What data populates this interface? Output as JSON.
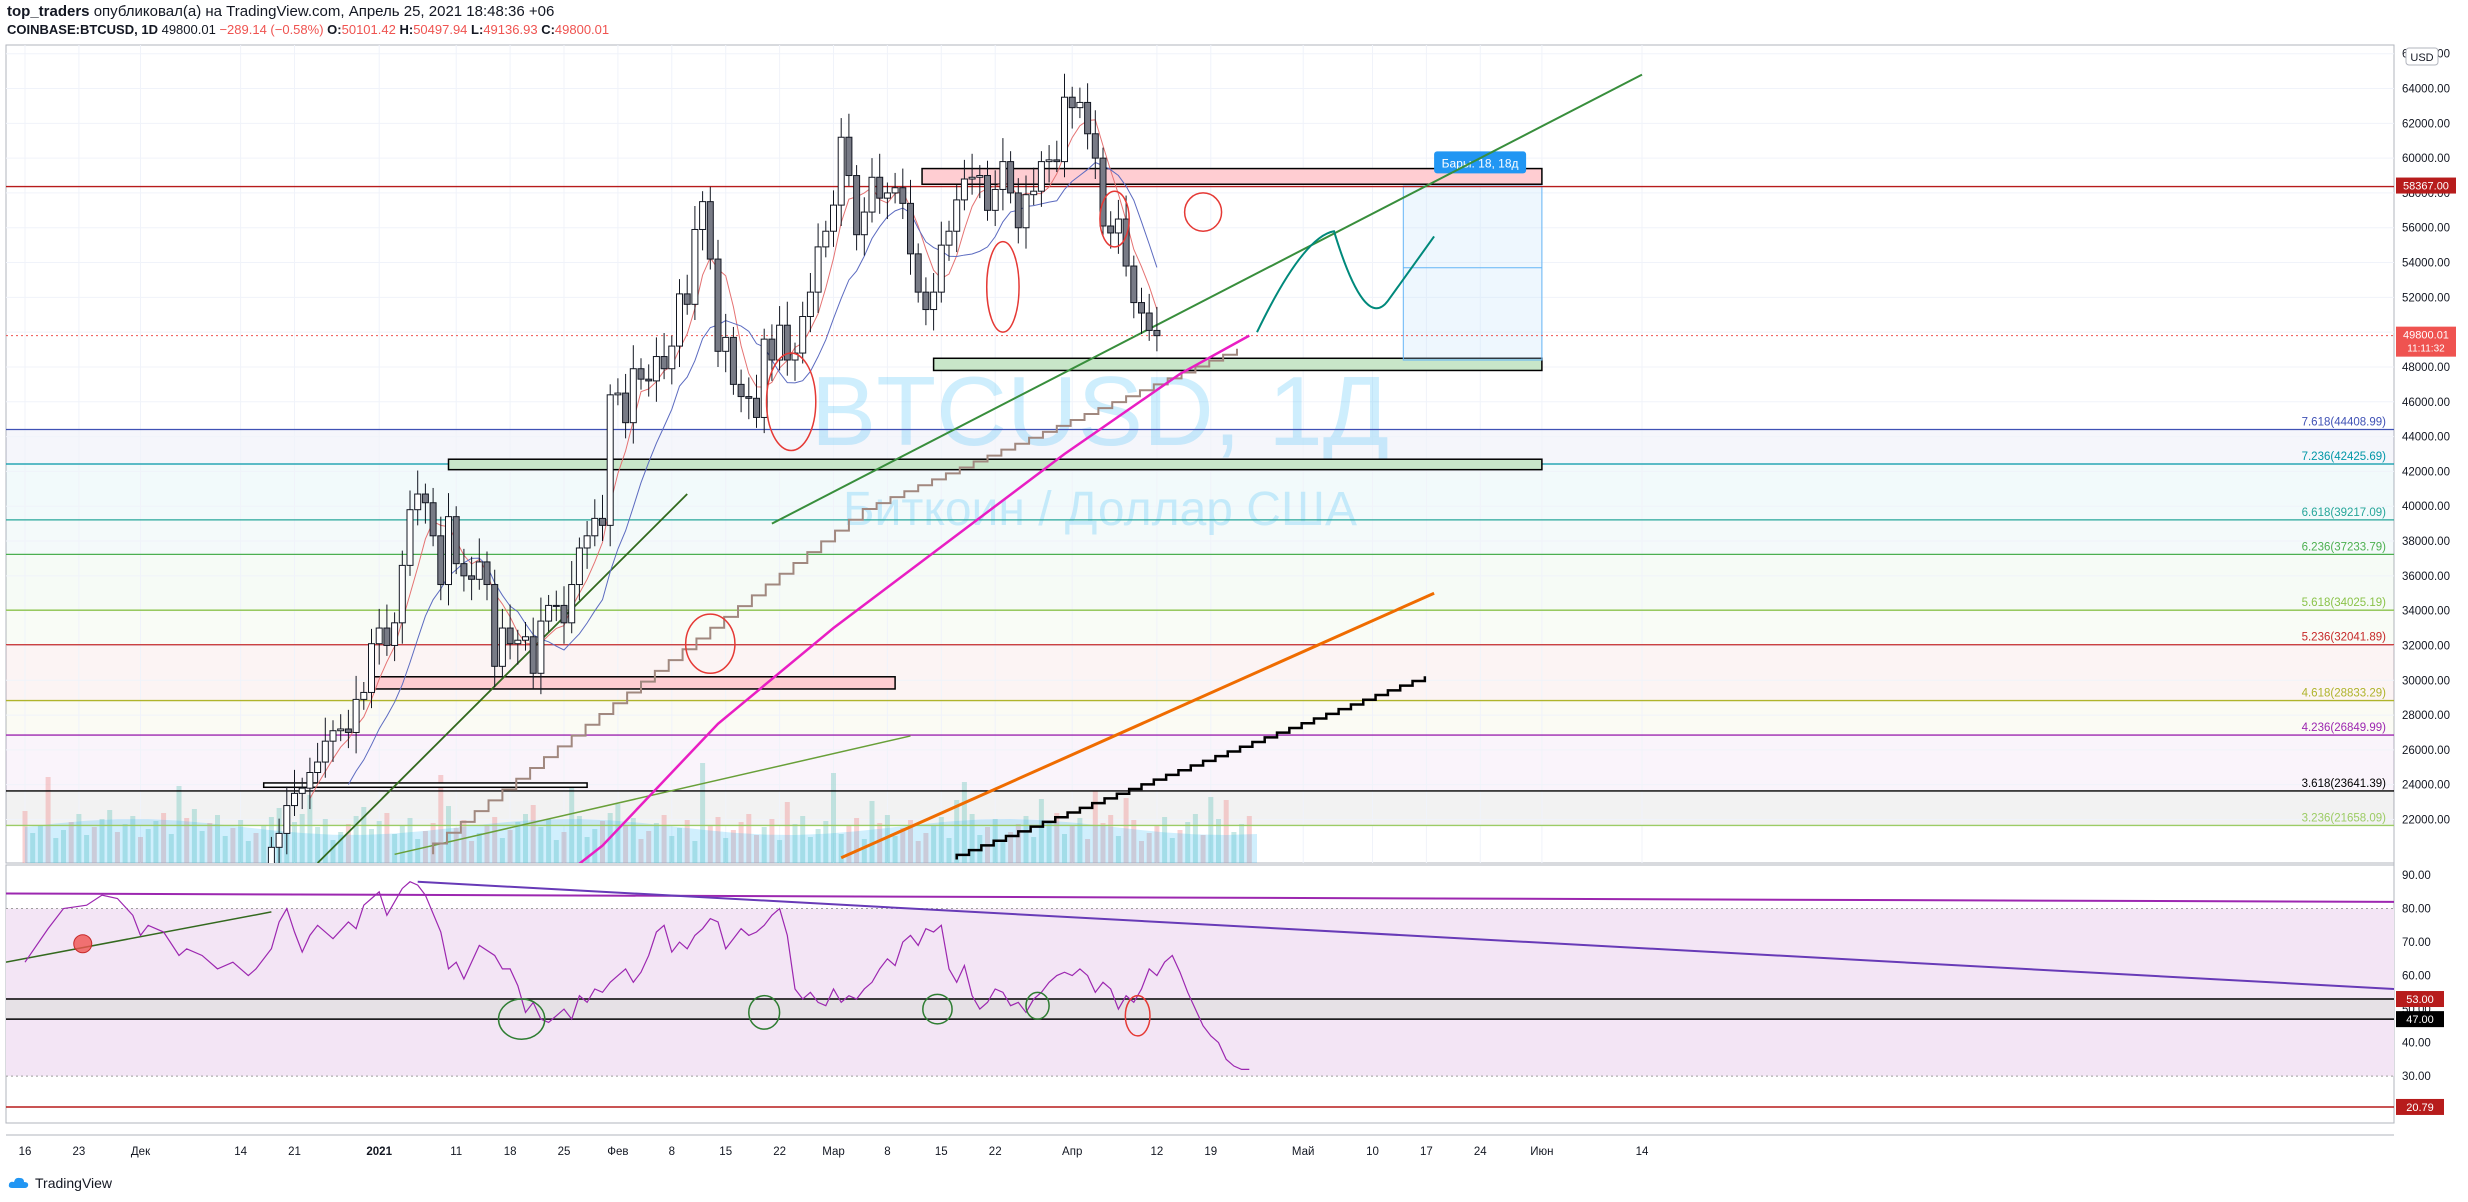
{
  "header": {
    "user": "top_traders",
    "published_text": "опубликовал(а) на TradingView.com, Апрель 25, 2021 18:48:36 +06",
    "symbol": "COINBASE:BTCUSD, 1D",
    "last": "49800.01",
    "change": "−289.14 (−0.58%)",
    "o_label": "O:",
    "o_value": "50101.42",
    "h_label": "H:",
    "h_value": "50497.94",
    "l_label": "L:",
    "l_value": "49136.93",
    "c_label": "C:",
    "c_value": "49800.01"
  },
  "watermark": {
    "symbol": "BTCUSD, 1Д",
    "description": "Биткоин / Доллар США"
  },
  "currency_badge": "USD",
  "colors": {
    "up": "#ffffff",
    "down": "#787b86",
    "ema200": "#e91ec3",
    "orange": "#ef6c00",
    "rsi": "#9c27b0",
    "price_badge": "#ef5350",
    "level_badge": "#b71c1c"
  },
  "price_badges": [
    {
      "label": "58367.00",
      "price": 58367,
      "color": "#b71c1c"
    },
    {
      "label": "49800.01",
      "sub": "11:11:32",
      "price": 49800,
      "color": "#ef5350"
    }
  ],
  "measure_label": "Бары: 18, 18д",
  "chart_data": {
    "type": "candlestick",
    "price_axis": {
      "ylim": [
        19500,
        66500
      ],
      "ticks": [
        "22000.00",
        "24000.00",
        "26000.00",
        "28000.00",
        "30000.00",
        "32000.00",
        "34000.00",
        "36000.00",
        "38000.00",
        "40000.00",
        "42000.00",
        "44000.00",
        "46000.00",
        "48000.00",
        "50000.00",
        "52000.00",
        "54000.00",
        "56000.00",
        "58000.00",
        "60000.00",
        "62000.00",
        "64000.00",
        "66000.00"
      ]
    },
    "rsi_axis": {
      "ylim": [
        16,
        93
      ],
      "ticks": [
        "30.00",
        "40.00",
        "50.00",
        "60.00",
        "70.00",
        "80.00",
        "90.00"
      ],
      "badges": [
        {
          "label": "53.00",
          "value": 53,
          "color": "#b71c1c"
        },
        {
          "label": "47.00",
          "value": 47,
          "color": "#000000"
        },
        {
          "label": "20.79",
          "value": 20.79,
          "color": "#b71c1c"
        }
      ]
    },
    "time_axis": [
      {
        "label": "16",
        "day": 0
      },
      {
        "label": "23",
        "day": 7
      },
      {
        "label": "Дек",
        "day": 15
      },
      {
        "label": "14",
        "day": 28
      },
      {
        "label": "21",
        "day": 35
      },
      {
        "label": "2021",
        "day": 46
      },
      {
        "label": "11",
        "day": 56
      },
      {
        "label": "18",
        "day": 63
      },
      {
        "label": "25",
        "day": 70
      },
      {
        "label": "Фев",
        "day": 77
      },
      {
        "label": "8",
        "day": 84
      },
      {
        "label": "15",
        "day": 91
      },
      {
        "label": "22",
        "day": 98
      },
      {
        "label": "Мар",
        "day": 105
      },
      {
        "label": "8",
        "day": 112
      },
      {
        "label": "15",
        "day": 119
      },
      {
        "label": "22",
        "day": 126
      },
      {
        "label": "Апр",
        "day": 136
      },
      {
        "label": "12",
        "day": 147
      },
      {
        "label": "19",
        "day": 154
      },
      {
        "label": "Май",
        "day": 166
      },
      {
        "label": "10",
        "day": 175
      },
      {
        "label": "17",
        "day": 182
      },
      {
        "label": "24",
        "day": 189
      },
      {
        "label": "Июн",
        "day": 197
      },
      {
        "label": "14",
        "day": 210
      }
    ],
    "fib_levels": [
      {
        "label": "7.618(44408.99)",
        "price": 44408.99,
        "color": "#3f51b5"
      },
      {
        "label": "7.236(42425.69)",
        "price": 42425.69,
        "color": "#0097a7"
      },
      {
        "label": "6.618(39217.09)",
        "price": 39217.09,
        "color": "#26a69a"
      },
      {
        "label": "6.236(37233.79)",
        "price": 37233.79,
        "color": "#4caf50"
      },
      {
        "label": "5.618(34025.19)",
        "price": 34025.19,
        "color": "#8bc34a"
      },
      {
        "label": "5.236(32041.89)",
        "price": 32041.89,
        "color": "#c62828"
      },
      {
        "label": "4.618(28833.29)",
        "price": 28833.29,
        "color": "#afb42b"
      },
      {
        "label": "4.236(26849.99)",
        "price": 26849.99,
        "color": "#9c27b0"
      },
      {
        "label": "3.618(23641.39)",
        "price": 23641.39,
        "color": "#000000"
      },
      {
        "label": "3.236(21658.09)",
        "price": 21658.09,
        "color": "#9ccc65"
      }
    ],
    "candles_start_day": 32,
    "candles": [
      [
        19000,
        20400
      ],
      [
        20400,
        21200
      ],
      [
        21200,
        22800
      ],
      [
        22800,
        23500
      ],
      [
        23500,
        23800
      ],
      [
        23800,
        24700
      ],
      [
        24700,
        25300
      ],
      [
        25300,
        26500
      ],
      [
        26500,
        27100
      ],
      [
        27100,
        27200
      ],
      [
        27200,
        27000
      ],
      [
        27000,
        28900
      ],
      [
        28900,
        29300
      ],
      [
        29300,
        32100
      ],
      [
        32100,
        33000
      ],
      [
        33000,
        32000
      ],
      [
        32000,
        33300
      ],
      [
        33300,
        36600
      ],
      [
        36600,
        39800
      ],
      [
        39800,
        40700
      ],
      [
        40700,
        40200
      ],
      [
        40200,
        38300
      ],
      [
        38300,
        35500
      ],
      [
        35500,
        39400
      ],
      [
        39400,
        36700
      ],
      [
        36700,
        36000
      ],
      [
        36000,
        35800
      ],
      [
        35800,
        36800
      ],
      [
        36800,
        35500
      ],
      [
        35500,
        30800
      ],
      [
        30800,
        33000
      ],
      [
        33000,
        32100
      ],
      [
        32100,
        32300
      ],
      [
        32300,
        32500
      ],
      [
        32500,
        30400
      ],
      [
        30400,
        33400
      ],
      [
        33400,
        34300
      ],
      [
        34300,
        34300
      ],
      [
        34300,
        33300
      ],
      [
        33300,
        35500
      ],
      [
        35500,
        37600
      ],
      [
        37600,
        38300
      ],
      [
        38300,
        39300
      ],
      [
        39300,
        38900
      ],
      [
        38900,
        46400
      ],
      [
        46400,
        46500
      ],
      [
        46500,
        44800
      ],
      [
        44800,
        47900
      ],
      [
        47900,
        47300
      ],
      [
        47300,
        47200
      ],
      [
        47200,
        48600
      ],
      [
        48600,
        47900
      ],
      [
        47900,
        49200
      ],
      [
        49200,
        52200
      ],
      [
        52200,
        51600
      ],
      [
        51600,
        55900
      ],
      [
        55900,
        57500
      ],
      [
        57500,
        54200
      ],
      [
        54200,
        48900
      ],
      [
        48900,
        49700
      ],
      [
        49700,
        47000
      ],
      [
        47000,
        46300
      ],
      [
        46300,
        46200
      ],
      [
        46200,
        45100
      ],
      [
        45100,
        49600
      ],
      [
        49600,
        48400
      ],
      [
        48400,
        50400
      ],
      [
        50400,
        48400
      ],
      [
        48400,
        48800
      ],
      [
        48800,
        50900
      ],
      [
        50900,
        52300
      ],
      [
        52300,
        54900
      ],
      [
        54900,
        55800
      ],
      [
        55800,
        57300
      ],
      [
        57300,
        61200
      ],
      [
        61200,
        59000
      ],
      [
        59000,
        55600
      ],
      [
        55600,
        56900
      ],
      [
        56900,
        58900
      ],
      [
        58900,
        57700
      ],
      [
        57700,
        58000
      ],
      [
        58000,
        58300
      ],
      [
        58300,
        57400
      ],
      [
        57400,
        54500
      ],
      [
        54500,
        52300
      ],
      [
        52300,
        51300
      ],
      [
        51300,
        52300
      ],
      [
        52300,
        55000
      ],
      [
        55000,
        55800
      ],
      [
        55800,
        57600
      ],
      [
        57600,
        58800
      ],
      [
        58800,
        58900
      ],
      [
        58900,
        59000
      ],
      [
        59000,
        57000
      ],
      [
        57000,
        58200
      ],
      [
        58200,
        59800
      ],
      [
        59800,
        58000
      ],
      [
        58000,
        56000
      ],
      [
        56000,
        57900
      ],
      [
        57900,
        58100
      ],
      [
        58100,
        59800
      ],
      [
        59800,
        59900
      ],
      [
        59900,
        59800
      ],
      [
        59800,
        63500
      ],
      [
        63500,
        62900
      ],
      [
        62900,
        63200
      ],
      [
        63200,
        61400
      ],
      [
        61400,
        60000
      ],
      [
        60000,
        56100
      ],
      [
        56100,
        55700
      ],
      [
        55700,
        56500
      ],
      [
        56500,
        53800
      ],
      [
        53800,
        51700
      ],
      [
        51700,
        51100
      ],
      [
        51100,
        50100
      ],
      [
        50100,
        49800
      ]
    ],
    "ema200": [
      [
        60,
        15300
      ],
      [
        75,
        20500
      ],
      [
        90,
        27500
      ],
      [
        105,
        33000
      ],
      [
        120,
        38000
      ],
      [
        135,
        43000
      ],
      [
        150,
        47600
      ],
      [
        159,
        49800
      ]
    ],
    "rsi": [
      [
        0,
        64
      ],
      [
        3,
        74
      ],
      [
        5,
        80
      ],
      [
        8,
        81
      ],
      [
        10,
        84
      ],
      [
        12,
        83
      ],
      [
        14,
        78
      ],
      [
        15,
        72
      ],
      [
        16,
        75
      ],
      [
        18,
        73
      ],
      [
        20,
        66
      ],
      [
        21,
        68
      ],
      [
        23,
        66
      ],
      [
        25,
        62
      ],
      [
        27,
        64
      ],
      [
        29,
        60
      ],
      [
        30,
        62
      ],
      [
        32,
        68
      ],
      [
        33,
        76
      ],
      [
        34,
        80
      ],
      [
        35,
        73
      ],
      [
        36,
        67
      ],
      [
        37,
        72
      ],
      [
        38,
        75
      ],
      [
        40,
        71
      ],
      [
        42,
        76
      ],
      [
        43,
        74
      ],
      [
        44,
        81
      ],
      [
        45,
        83
      ],
      [
        46,
        85
      ],
      [
        47,
        78
      ],
      [
        48,
        82
      ],
      [
        49,
        86
      ],
      [
        50,
        88
      ],
      [
        51,
        87
      ],
      [
        52,
        84
      ],
      [
        54,
        73
      ],
      [
        55,
        62
      ],
      [
        56,
        64
      ],
      [
        57,
        59
      ],
      [
        58,
        64
      ],
      [
        59,
        69
      ],
      [
        61,
        66
      ],
      [
        62,
        62
      ],
      [
        63,
        62
      ],
      [
        64,
        57
      ],
      [
        65,
        49
      ],
      [
        66,
        52
      ],
      [
        67,
        47
      ],
      [
        68,
        46
      ],
      [
        69,
        48
      ],
      [
        70,
        50
      ],
      [
        71,
        47
      ],
      [
        72,
        54
      ],
      [
        73,
        52
      ],
      [
        74,
        56
      ],
      [
        75,
        55
      ],
      [
        76,
        58
      ],
      [
        77,
        60
      ],
      [
        78,
        62
      ],
      [
        79,
        58
      ],
      [
        80,
        61
      ],
      [
        81,
        66
      ],
      [
        82,
        73
      ],
      [
        83,
        75
      ],
      [
        84,
        67
      ],
      [
        85,
        70
      ],
      [
        86,
        68
      ],
      [
        87,
        72
      ],
      [
        88,
        74
      ],
      [
        89,
        77
      ],
      [
        90,
        76
      ],
      [
        91,
        68
      ],
      [
        92,
        71
      ],
      [
        93,
        74
      ],
      [
        94,
        72
      ],
      [
        95,
        73
      ],
      [
        96,
        75
      ],
      [
        97,
        78
      ],
      [
        98,
        80
      ],
      [
        99,
        72
      ],
      [
        100,
        56
      ],
      [
        101,
        53
      ],
      [
        102,
        55
      ],
      [
        103,
        52
      ],
      [
        104,
        51
      ],
      [
        105,
        56
      ],
      [
        106,
        52
      ],
      [
        107,
        54
      ],
      [
        108,
        53
      ],
      [
        109,
        56
      ],
      [
        110,
        58
      ],
      [
        111,
        62
      ],
      [
        112,
        65
      ],
      [
        113,
        63
      ],
      [
        114,
        70
      ],
      [
        115,
        72
      ],
      [
        116,
        69
      ],
      [
        117,
        74
      ],
      [
        118,
        73
      ],
      [
        119,
        75
      ],
      [
        120,
        62
      ],
      [
        121,
        58
      ],
      [
        122,
        63
      ],
      [
        123,
        54
      ],
      [
        124,
        50
      ],
      [
        125,
        52
      ],
      [
        126,
        56
      ],
      [
        127,
        55
      ],
      [
        128,
        51
      ],
      [
        129,
        52
      ],
      [
        130,
        49
      ],
      [
        131,
        53
      ],
      [
        132,
        55
      ],
      [
        133,
        58
      ],
      [
        134,
        60
      ],
      [
        135,
        61
      ],
      [
        136,
        60
      ],
      [
        137,
        62
      ],
      [
        138,
        60
      ],
      [
        139,
        55
      ],
      [
        140,
        58
      ],
      [
        141,
        56
      ],
      [
        142,
        50
      ],
      [
        143,
        54
      ],
      [
        144,
        52
      ],
      [
        145,
        56
      ],
      [
        146,
        62
      ],
      [
        147,
        60
      ],
      [
        148,
        64
      ],
      [
        149,
        66
      ],
      [
        150,
        61
      ],
      [
        151,
        55
      ],
      [
        152,
        50
      ],
      [
        153,
        45
      ],
      [
        154,
        42
      ],
      [
        155,
        40
      ],
      [
        156,
        35
      ],
      [
        157,
        33
      ],
      [
        158,
        32
      ],
      [
        159,
        32
      ]
    ],
    "rsi_lines": [
      53,
      47,
      20.79
    ],
    "rsi_band": [
      30,
      80
    ]
  }
}
